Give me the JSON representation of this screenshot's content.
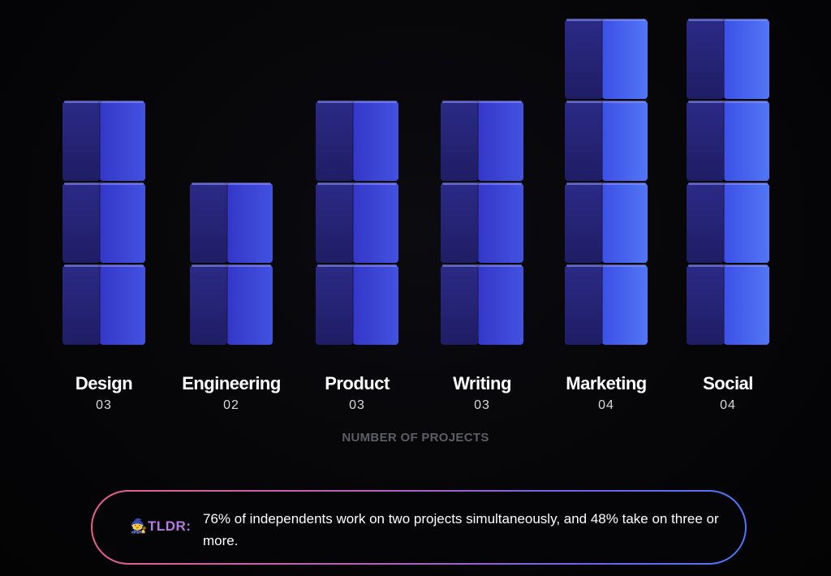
{
  "chart_data": {
    "type": "bar",
    "style": "stacked-cubes",
    "categories": [
      "Design",
      "Engineering",
      "Product",
      "Writing",
      "Marketing",
      "Social"
    ],
    "values": [
      3,
      2,
      3,
      3,
      4,
      4
    ],
    "value_labels": [
      "03",
      "02",
      "03",
      "03",
      "04",
      "04"
    ],
    "title": "",
    "xlabel": "NUMBER OF PROJECTS",
    "ylabel": "",
    "ylim": [
      0,
      4
    ],
    "grid": false,
    "legend": "none"
  },
  "colors": {
    "cube_front": "#26237a",
    "cube_side": "#3d44d8",
    "cube_side_highlight": "#4a6cf0",
    "background": "#050507",
    "tldr_gradient_start": "#e6608a",
    "tldr_gradient_end": "#4a78ff"
  },
  "tldr": {
    "icon": "wizard-icon",
    "icon_glyph": "🧙",
    "label": "TLDR:",
    "text": "76% of independents work on two projects simultaneously, and 48% take on three or more."
  }
}
